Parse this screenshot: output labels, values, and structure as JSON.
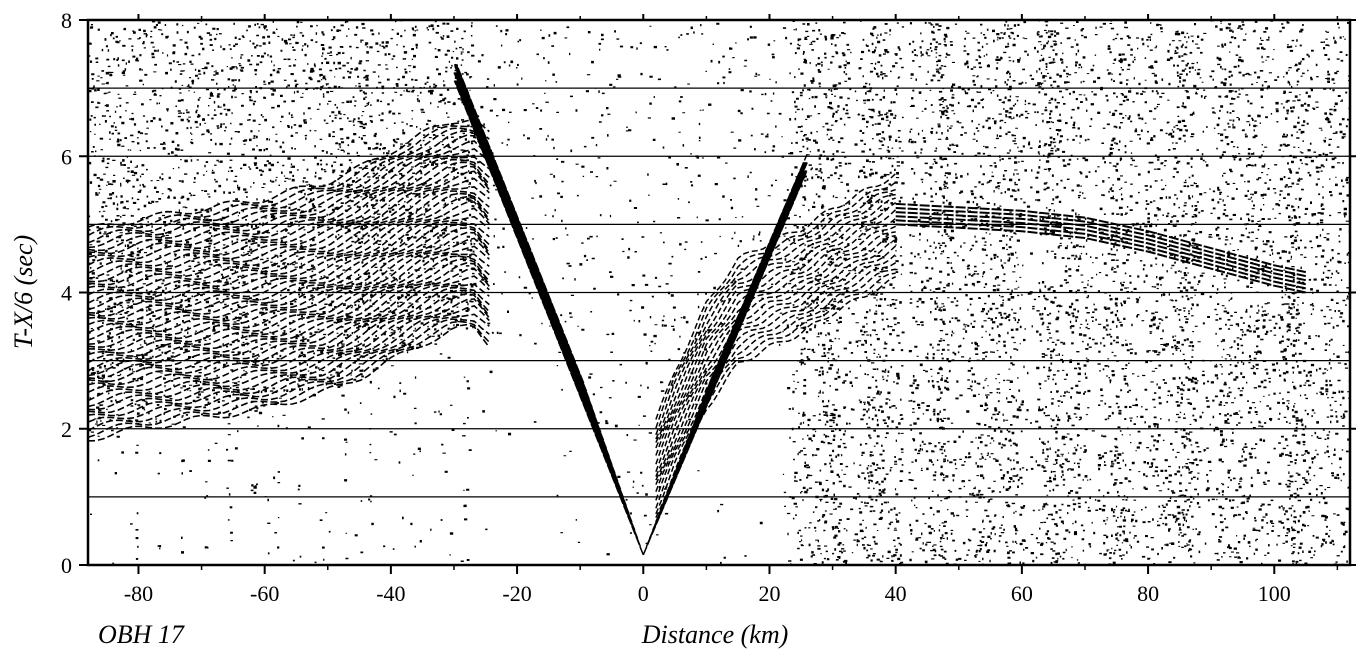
{
  "figure": {
    "station_label": "OBH 17"
  },
  "chart_data": {
    "type": "record-section",
    "title": "",
    "xlabel": "Distance (km)",
    "ylabel": "T-X/6 (sec)",
    "xlim": [
      -88,
      112
    ],
    "ylim": [
      0,
      8
    ],
    "xticks": [
      -80,
      -60,
      -40,
      -20,
      0,
      20,
      40,
      60,
      80,
      100
    ],
    "yticks": [
      0,
      2,
      4,
      6,
      8
    ],
    "gridlines_y": [
      1,
      2,
      3,
      4,
      5,
      6,
      7
    ],
    "grid": "horizontal",
    "colors": {
      "ink": "#000000",
      "background": "#ffffff"
    },
    "first_arrivals": {
      "negative_offset": {
        "x": [
          -88,
          -80,
          -70,
          -60,
          -50,
          -45,
          -40,
          -35,
          -30,
          -27,
          -22,
          -15,
          -10,
          -5,
          -2,
          0
        ],
        "y": [
          1.85,
          2.0,
          2.15,
          2.3,
          2.55,
          2.75,
          3.0,
          3.25,
          3.45,
          3.5,
          3.0,
          2.95,
          2.3,
          1.3,
          0.6,
          0.15
        ]
      },
      "positive_offset": {
        "x": [
          0,
          2,
          5,
          10,
          15,
          20,
          25,
          30,
          35,
          40
        ],
        "y": [
          0.15,
          0.6,
          1.3,
          2.3,
          2.95,
          3.2,
          3.4,
          3.7,
          3.95,
          4.2
        ]
      }
    },
    "secondary_phase": {
      "x": [
        40,
        50,
        60,
        70,
        80,
        90,
        100,
        105
      ],
      "y": [
        5.0,
        4.95,
        4.9,
        4.8,
        4.6,
        4.35,
        4.1,
        4.0
      ]
    },
    "noise_zones": [
      {
        "x": [
          -88,
          -30
        ],
        "y": [
          0,
          8
        ]
      },
      {
        "x": [
          22,
          112
        ],
        "y": [
          0,
          8
        ]
      }
    ],
    "trace_gap_x": 41.5
  }
}
